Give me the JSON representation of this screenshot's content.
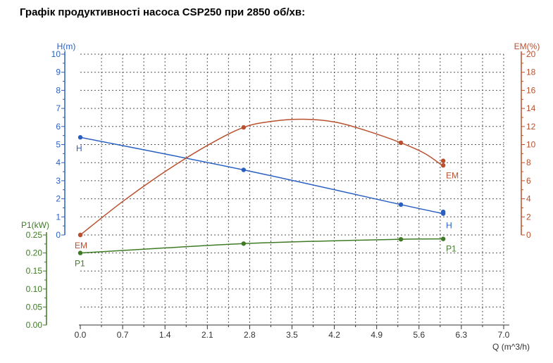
{
  "page_title": "Графік продуктивності насоса CSP250 при 2850 об/хв:",
  "colors": {
    "H": "#2a5fc2",
    "EM": "#b8502e",
    "P1": "#3f7a25",
    "grid": "#555555",
    "axis_x": "#333333"
  },
  "chart_data": {
    "type": "line",
    "title": "Графік продуктивності насоса CSP250 при 2850 об/хв:",
    "xlabel": "Q (m^3/h)",
    "x_ticks": [
      "0.0",
      "0.7",
      "1.4",
      "2.1",
      "2.8",
      "3.5",
      "4.2",
      "4.9",
      "5.6",
      "6.3",
      "7.0"
    ],
    "xlim": [
      0,
      7.0
    ],
    "grid": true,
    "axes": {
      "H": {
        "label": "H(m)",
        "ylim": [
          0,
          10
        ],
        "ticks": [
          "0",
          "1",
          "2",
          "3",
          "4",
          "5",
          "6",
          "7",
          "8",
          "9",
          "10"
        ]
      },
      "EM": {
        "label": "EM(%)",
        "ylim": [
          0,
          20
        ],
        "ticks": [
          "0",
          "2",
          "4",
          "6",
          "8",
          "10",
          "12",
          "14",
          "16",
          "18",
          "20"
        ]
      },
      "P1": {
        "label": "P1(kW)",
        "ylim": [
          0,
          0.25
        ],
        "ticks": [
          "0.00",
          "0.05",
          "0.10",
          "0.15",
          "0.20",
          "0.25"
        ]
      }
    },
    "series": [
      {
        "name": "H",
        "axis": "H",
        "color": "#2a5fc2",
        "x": [
          0,
          2.7,
          5.3,
          6.0
        ],
        "y": [
          5.4,
          3.6,
          1.68,
          1.18
        ],
        "markers_x": [
          0,
          2.7,
          5.3,
          6.0,
          6.0
        ],
        "markers_y": [
          5.4,
          3.6,
          1.68,
          1.18,
          1.28
        ]
      },
      {
        "name": "EM",
        "axis": "EM",
        "color": "#b8502e",
        "x": [
          0,
          0.7,
          1.4,
          2.1,
          2.7,
          3.2,
          3.7,
          4.2,
          4.7,
          5.3,
          5.7,
          6.0
        ],
        "y": [
          0,
          3.7,
          7.0,
          9.9,
          11.9,
          12.6,
          12.8,
          12.5,
          11.6,
          10.2,
          9.0,
          7.6
        ],
        "markers_x": [
          0,
          2.7,
          5.3,
          6.0,
          6.0
        ],
        "markers_y": [
          0,
          11.9,
          10.2,
          8.2,
          7.7
        ]
      },
      {
        "name": "P1",
        "axis": "P1",
        "color": "#3f7a25",
        "x": [
          0,
          1.4,
          2.7,
          4.0,
          5.3,
          6.0
        ],
        "y": [
          0.2,
          0.214,
          0.226,
          0.233,
          0.238,
          0.239
        ],
        "markers_x": [
          0,
          2.7,
          5.3,
          6.0
        ],
        "markers_y": [
          0.2,
          0.226,
          0.238,
          0.239
        ]
      }
    ],
    "curve_labels": [
      {
        "text": "H",
        "series": "H",
        "at": "start"
      },
      {
        "text": "H",
        "series": "H",
        "at": "end"
      },
      {
        "text": "EM",
        "series": "EM",
        "at": "start"
      },
      {
        "text": "EM",
        "series": "EM",
        "at": "end"
      },
      {
        "text": "P1",
        "series": "P1",
        "at": "start"
      },
      {
        "text": "P1",
        "series": "P1",
        "at": "end"
      }
    ]
  }
}
